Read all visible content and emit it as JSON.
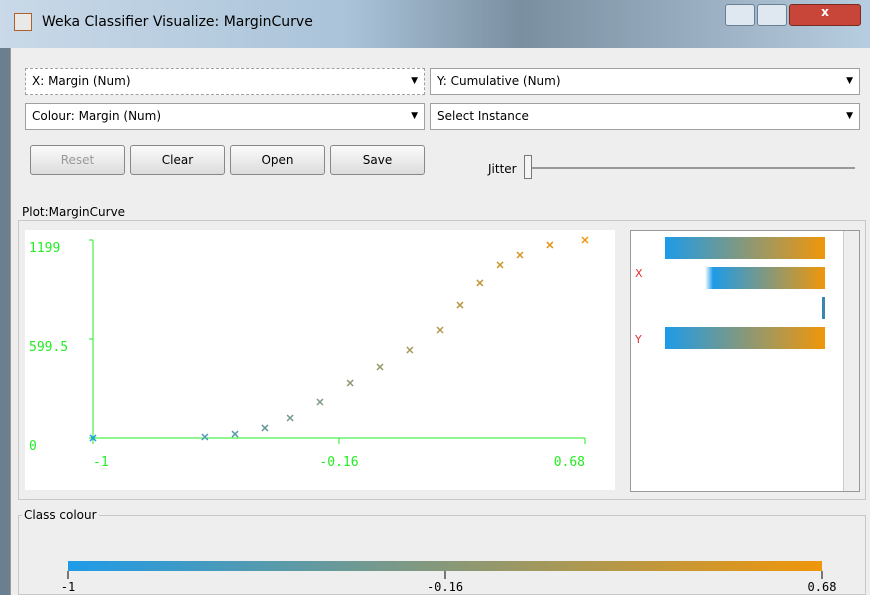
{
  "window": {
    "title": "Weka Classifier Visualize: MarginCurve"
  },
  "controls": {
    "x_axis": "X: Margin (Num)",
    "y_axis": "Y: Cumulative (Num)",
    "colour": "Colour: Margin (Num)",
    "select": "Select Instance",
    "buttons": [
      "Reset",
      "Clear",
      "Open",
      "Save"
    ],
    "jitter": "Jitter"
  },
  "plot": {
    "title": "Plot:MarginCurve",
    "type": "scatter",
    "x": [
      -1,
      -0.618,
      -0.515,
      -0.413,
      -0.327,
      -0.225,
      -0.122,
      -0.02,
      0.082,
      0.185,
      0.253,
      0.321,
      0.39,
      0.458,
      0.56,
      0.68
    ],
    "y": [
      0,
      6,
      24,
      61,
      121,
      218,
      333,
      430,
      533,
      654,
      805,
      939,
      1048,
      1108,
      1169,
      1199
    ],
    "xlim": [
      -1,
      0.68
    ],
    "ylim": [
      0,
      1199
    ],
    "xticks": [
      -1,
      -0.16,
      0.68
    ],
    "yticks": [
      0,
      599.5,
      1199
    ],
    "colors": [
      "#1e9be8",
      "#f0960a"
    ]
  },
  "attributes": {
    "labels": [
      "X",
      "Y"
    ]
  },
  "class_colour": {
    "title": "Class colour",
    "ticks": [
      -1,
      -0.16,
      0.68
    ]
  }
}
